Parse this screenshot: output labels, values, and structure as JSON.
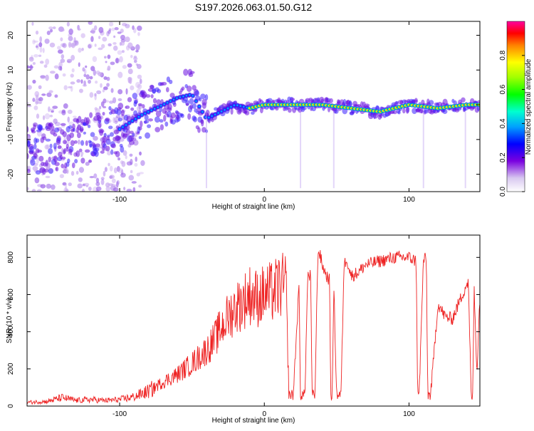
{
  "title": "S197.2026.063.01.50.G12",
  "chart_data": [
    {
      "type": "heatmap",
      "title": "S197.2026.063.01.50.G12",
      "xlabel": "Height of straight line (km)",
      "ylabel": "Frequency (Hz)",
      "xlim": [
        -164,
        149
      ],
      "ylim": [
        -25,
        24
      ],
      "xticks": [
        -100,
        0,
        100
      ],
      "yticks": [
        -20,
        -10,
        0,
        10,
        20
      ],
      "xtick_labels": [
        "-100",
        "0",
        "100"
      ],
      "ytick_labels": [
        "-20",
        "-10",
        "0",
        "10",
        "20"
      ],
      "colorbar": {
        "label": "Normalized spectral amplitude",
        "range": [
          0,
          1
        ],
        "ticks": [
          0.0,
          0.2,
          0.4,
          0.6,
          0.8
        ],
        "tick_labels": [
          "0.0",
          "0.2",
          "0.4",
          "0.6",
          "0.8"
        ]
      },
      "ridge": {
        "x": [
          -164,
          -140,
          -120,
          -100,
          -85,
          -70,
          -60,
          -50,
          -40,
          -30,
          -20,
          -10,
          0,
          20,
          40,
          60,
          80,
          90,
          100,
          120,
          140,
          149
        ],
        "freq": [
          -13,
          -12,
          -10,
          -7,
          -3,
          0,
          2,
          3,
          -4,
          -2,
          0,
          -1,
          0,
          0,
          0,
          -1,
          -2,
          -1,
          0,
          -1,
          0,
          0
        ]
      }
    },
    {
      "type": "line",
      "xlabel": "Height of straight line (km)",
      "ylabel": "SNR (10 * v/v)",
      "xlim": [
        -164,
        149
      ],
      "ylim": [
        0,
        920
      ],
      "xticks": [
        -100,
        0,
        100
      ],
      "yticks": [
        0,
        200,
        400,
        600,
        800
      ],
      "xtick_labels": [
        "-100",
        "0",
        "100"
      ],
      "ytick_labels": [
        "0",
        "200",
        "400",
        "600",
        "800"
      ],
      "series": [
        {
          "name": "SNR",
          "color": "#ee2222",
          "x": [
            -164,
            -150,
            -140,
            -130,
            -120,
            -110,
            -100,
            -90,
            -80,
            -70,
            -60,
            -50,
            -40,
            -35,
            -30,
            -25,
            -20,
            -15,
            -10,
            -5,
            0,
            5,
            10,
            15,
            17,
            20,
            24,
            25,
            28,
            30,
            32,
            33,
            35,
            37,
            38,
            40,
            43,
            45,
            46,
            47,
            48,
            50,
            53,
            55,
            57,
            58,
            60,
            65,
            70,
            80,
            90,
            100,
            105,
            106,
            107,
            110,
            112,
            113,
            115,
            120,
            125,
            130,
            140,
            141,
            143,
            144,
            145,
            147,
            149
          ],
          "y": [
            20,
            25,
            45,
            30,
            35,
            30,
            35,
            50,
            80,
            130,
            170,
            230,
            300,
            350,
            420,
            480,
            530,
            560,
            600,
            580,
            600,
            610,
            640,
            650,
            60,
            60,
            650,
            60,
            60,
            700,
            700,
            60,
            60,
            820,
            830,
            760,
            700,
            680,
            60,
            60,
            660,
            60,
            60,
            750,
            800,
            760,
            700,
            720,
            760,
            780,
            800,
            800,
            780,
            60,
            60,
            790,
            790,
            60,
            60,
            550,
            480,
            470,
            660,
            660,
            50,
            50,
            640,
            180,
            600
          ]
        }
      ]
    }
  ]
}
